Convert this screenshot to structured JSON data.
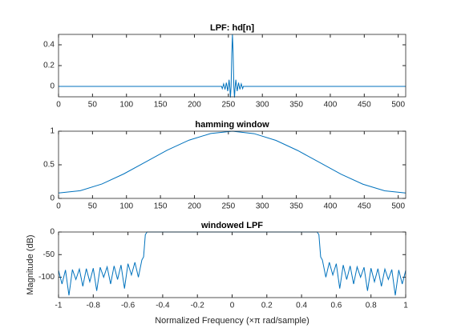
{
  "chart_data": [
    {
      "type": "line",
      "title": "LPF: hd[n]",
      "color": "#0072bd",
      "x": [
        0,
        240,
        241,
        242,
        243,
        244,
        245,
        246,
        247,
        248,
        249,
        250,
        251,
        252,
        253,
        254,
        255,
        256,
        257,
        258,
        259,
        260,
        261,
        262,
        263,
        264,
        265,
        266,
        267,
        268,
        269,
        270,
        271,
        272,
        511
      ],
      "values": [
        0,
        0,
        -0.0212,
        0,
        0.0245,
        0,
        -0.0289,
        0,
        0.0354,
        0,
        -0.0455,
        0,
        0.0637,
        0,
        -0.1061,
        0,
        0.3183,
        0.5,
        0.3183,
        0,
        -0.1061,
        0,
        0.0637,
        0,
        -0.0455,
        0,
        0.0354,
        0,
        -0.0289,
        0,
        0.0245,
        0,
        -0.0212,
        0,
        0
      ],
      "xlim": [
        0,
        511
      ],
      "xticks": [
        0,
        50,
        100,
        150,
        200,
        250,
        300,
        350,
        400,
        450,
        500
      ],
      "ylim": [
        -0.1,
        0.5
      ],
      "yticks": [
        0,
        0.2,
        0.4
      ]
    },
    {
      "type": "line",
      "title": "hamming window",
      "color": "#0072bd",
      "x": [
        0,
        32,
        64,
        96,
        128,
        160,
        192,
        224,
        256,
        288,
        320,
        352,
        384,
        416,
        448,
        480,
        511
      ],
      "values": [
        0.08,
        0.1151,
        0.2152,
        0.3647,
        0.5414,
        0.7177,
        0.8666,
        0.9657,
        1.0,
        0.9635,
        0.863,
        0.7128,
        0.5358,
        0.3598,
        0.2117,
        0.1134,
        0.08
      ],
      "xlim": [
        0,
        511
      ],
      "xticks": [
        0,
        50,
        100,
        150,
        200,
        250,
        300,
        350,
        400,
        450,
        500
      ],
      "ylim": [
        0,
        1
      ],
      "yticks": [
        0,
        0.5,
        1
      ]
    },
    {
      "type": "line",
      "title": "windowed LPF",
      "color": "#0072bd",
      "xlabel": "Normalized Frequency (×π rad/sample)",
      "ylabel": "Magnitude (dB)",
      "x": [
        -1,
        -0.98,
        -0.96,
        -0.94,
        -0.92,
        -0.9,
        -0.88,
        -0.86,
        -0.84,
        -0.82,
        -0.8,
        -0.78,
        -0.76,
        -0.74,
        -0.72,
        -0.7,
        -0.68,
        -0.66,
        -0.64,
        -0.62,
        -0.6,
        -0.58,
        -0.56,
        -0.54,
        -0.52,
        -0.51,
        -0.5,
        -0.49,
        0,
        0.49,
        0.5,
        0.51,
        0.52,
        0.54,
        0.56,
        0.58,
        0.6,
        0.62,
        0.64,
        0.66,
        0.68,
        0.7,
        0.72,
        0.74,
        0.76,
        0.78,
        0.8,
        0.82,
        0.84,
        0.86,
        0.88,
        0.9,
        0.92,
        0.94,
        0.96,
        0.98,
        1
      ],
      "values": [
        -85,
        -115,
        -84,
        -140,
        -83,
        -105,
        -82,
        -120,
        -81,
        -110,
        -80,
        -130,
        -78,
        -100,
        -77,
        -115,
        -75,
        -105,
        -73,
        -125,
        -70,
        -95,
        -67,
        -100,
        -62,
        -55,
        -6,
        0,
        0,
        0,
        -6,
        -55,
        -62,
        -100,
        -67,
        -95,
        -70,
        -125,
        -73,
        -105,
        -75,
        -115,
        -77,
        -100,
        -78,
        -130,
        -80,
        -110,
        -81,
        -120,
        -82,
        -105,
        -83,
        -140,
        -84,
        -115,
        -85
      ],
      "xlim": [
        -1,
        1
      ],
      "xticks": [
        -1,
        -0.8,
        -0.6,
        -0.4,
        -0.2,
        0,
        0.2,
        0.4,
        0.6,
        0.8,
        1
      ],
      "ylim": [
        -145,
        0
      ],
      "yticks": [
        -100,
        -50,
        0
      ]
    }
  ]
}
